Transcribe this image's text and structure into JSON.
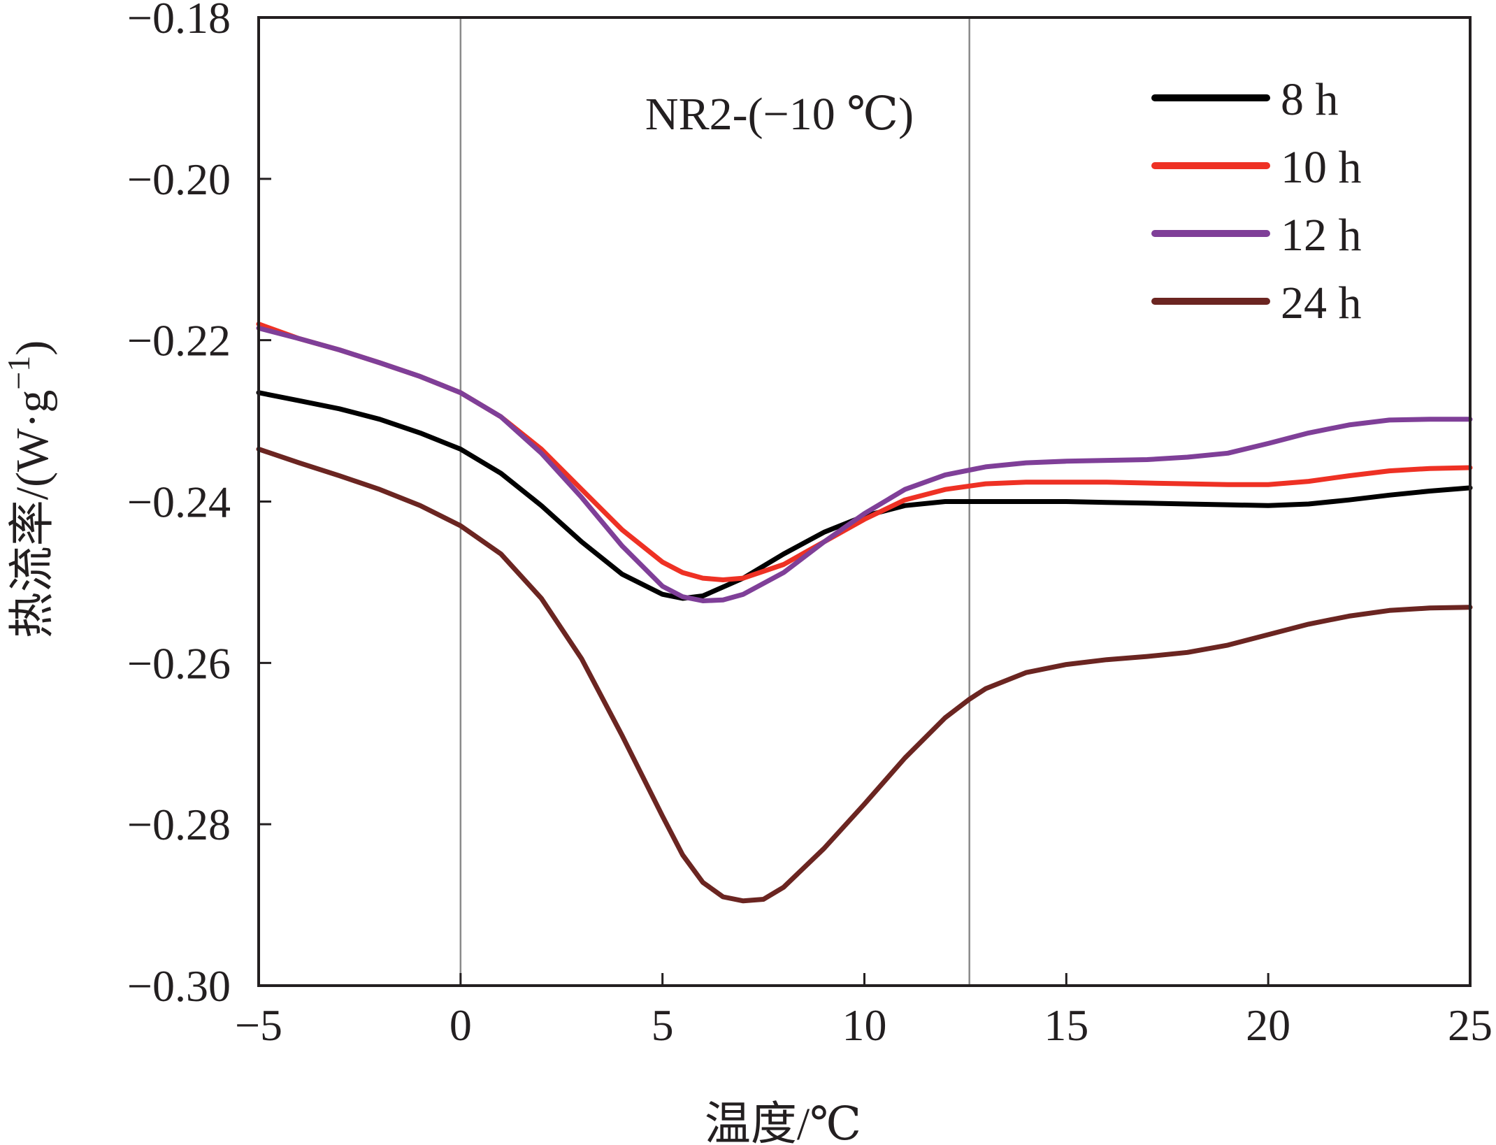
{
  "chart_data": {
    "type": "line",
    "annotation": "NR2-(−10 ℃)",
    "xlabel": "温度/℃",
    "ylabel": "热流率/(W·g−1)",
    "ylabel_parts": {
      "base": "热流率/(W·g",
      "sup": "−1",
      "close": ")"
    },
    "xlim": [
      -5,
      25
    ],
    "ylim": [
      -0.3,
      -0.18
    ],
    "xticks": [
      -5,
      0,
      5,
      10,
      15,
      20,
      25
    ],
    "xtick_labels": [
      "−5",
      "0",
      "5",
      "10",
      "15",
      "20",
      "25"
    ],
    "yticks": [
      -0.3,
      -0.28,
      -0.26,
      -0.24,
      -0.22,
      -0.2,
      -0.18
    ],
    "ytick_labels": [
      "−0.30",
      "−0.28",
      "−0.26",
      "−0.24",
      "−0.22",
      "−0.20",
      "−0.18"
    ],
    "reference_lines_x": [
      0,
      12.6
    ],
    "legend_position": "top-right",
    "grid": false,
    "series": [
      {
        "name": "8 h",
        "color": "#000000",
        "x": [
          -5,
          -4,
          -3,
          -2,
          -1,
          0,
          1,
          2,
          3,
          4,
          5,
          5.5,
          6,
          7,
          8,
          9,
          10,
          11,
          12,
          13,
          14,
          15,
          16,
          17,
          18,
          19,
          20,
          21,
          22,
          23,
          24,
          25
        ],
        "y": [
          -0.2265,
          -0.2275,
          -0.2285,
          -0.2298,
          -0.2315,
          -0.2335,
          -0.2365,
          -0.2405,
          -0.245,
          -0.249,
          -0.2515,
          -0.252,
          -0.2517,
          -0.2495,
          -0.2465,
          -0.2438,
          -0.2418,
          -0.2405,
          -0.24,
          -0.24,
          -0.24,
          -0.24,
          -0.2401,
          -0.2402,
          -0.2403,
          -0.2404,
          -0.2405,
          -0.2403,
          -0.2398,
          -0.2392,
          -0.2387,
          -0.2383
        ]
      },
      {
        "name": "10 h",
        "color": "#ee3124",
        "x": [
          -5,
          -4,
          -3,
          -2,
          -1,
          0,
          1,
          2,
          3,
          4,
          5,
          5.5,
          6,
          6.5,
          7,
          8,
          9,
          10,
          11,
          12,
          13,
          14,
          15,
          16,
          17,
          18,
          19,
          20,
          21,
          22,
          23,
          24,
          25
        ],
        "y": [
          -0.218,
          -0.2198,
          -0.2212,
          -0.2228,
          -0.2245,
          -0.2265,
          -0.2295,
          -0.2335,
          -0.2385,
          -0.2435,
          -0.2475,
          -0.2488,
          -0.2495,
          -0.2497,
          -0.2495,
          -0.2478,
          -0.245,
          -0.2422,
          -0.2398,
          -0.2385,
          -0.2378,
          -0.2376,
          -0.2376,
          -0.2376,
          -0.2377,
          -0.2378,
          -0.2379,
          -0.2379,
          -0.2375,
          -0.2368,
          -0.2362,
          -0.2359,
          -0.2358
        ]
      },
      {
        "name": "12 h",
        "color": "#7f3f98",
        "x": [
          -5,
          -4,
          -3,
          -2,
          -1,
          0,
          1,
          2,
          3,
          4,
          5,
          5.5,
          6,
          6.5,
          7,
          8,
          9,
          10,
          11,
          12,
          13,
          14,
          15,
          16,
          17,
          18,
          19,
          20,
          21,
          22,
          23,
          24,
          25
        ],
        "y": [
          -0.2185,
          -0.2198,
          -0.2212,
          -0.2228,
          -0.2245,
          -0.2265,
          -0.2295,
          -0.234,
          -0.2395,
          -0.2455,
          -0.2505,
          -0.2518,
          -0.2523,
          -0.2522,
          -0.2515,
          -0.2488,
          -0.245,
          -0.2415,
          -0.2385,
          -0.2367,
          -0.2357,
          -0.2352,
          -0.235,
          -0.2349,
          -0.2348,
          -0.2345,
          -0.234,
          -0.2328,
          -0.2315,
          -0.2305,
          -0.2299,
          -0.2298,
          -0.2298
        ]
      },
      {
        "name": "24 h",
        "color": "#6b2521",
        "x": [
          -5,
          -4,
          -3,
          -2,
          -1,
          0,
          1,
          2,
          3,
          4,
          5,
          5.5,
          6,
          6.5,
          7,
          7.5,
          8,
          9,
          10,
          11,
          12,
          12.6,
          13,
          14,
          15,
          16,
          17,
          18,
          19,
          20,
          21,
          22,
          23,
          24,
          25
        ],
        "y": [
          -0.2335,
          -0.2352,
          -0.2368,
          -0.2385,
          -0.2405,
          -0.243,
          -0.2465,
          -0.252,
          -0.2595,
          -0.269,
          -0.279,
          -0.2838,
          -0.2872,
          -0.289,
          -0.2895,
          -0.2893,
          -0.2878,
          -0.283,
          -0.2775,
          -0.2718,
          -0.2668,
          -0.2645,
          -0.2632,
          -0.2612,
          -0.2602,
          -0.2596,
          -0.2592,
          -0.2587,
          -0.2578,
          -0.2565,
          -0.2552,
          -0.2542,
          -0.2535,
          -0.2532,
          -0.2531
        ]
      }
    ]
  }
}
